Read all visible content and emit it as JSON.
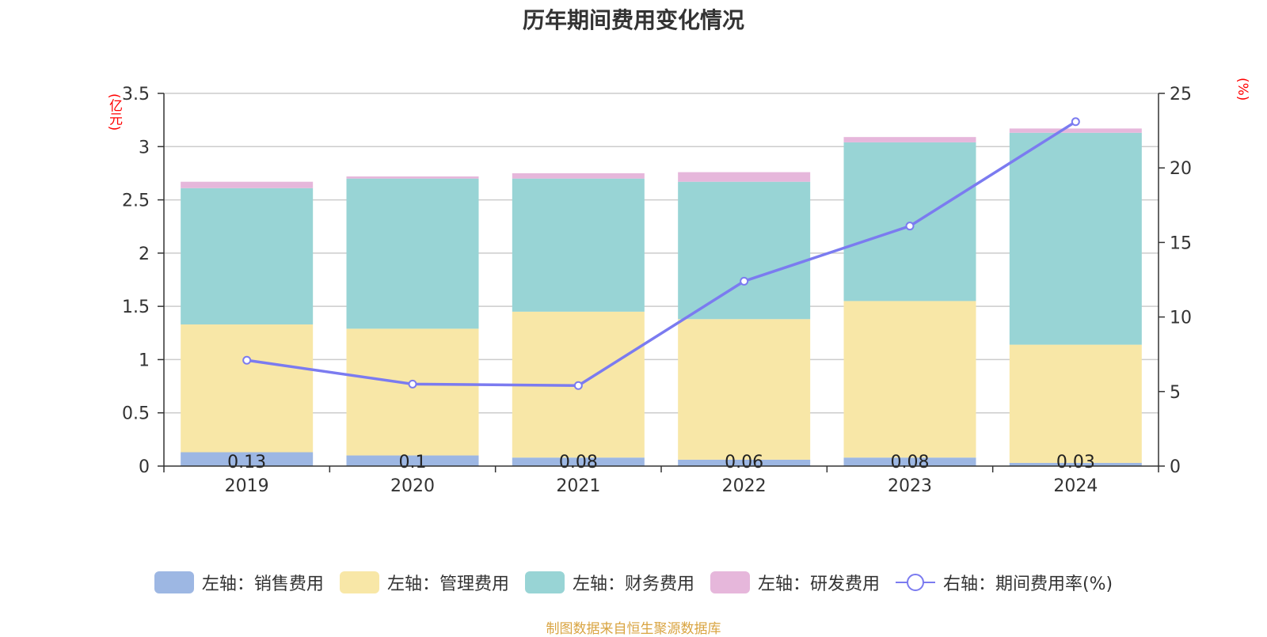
{
  "title": "历年期间费用变化情况",
  "left_unit": "(亿元)",
  "right_unit": "(%)",
  "source": "制图数据来自恒生聚源数据库",
  "chart_data": {
    "type": "bar",
    "stacked": true,
    "categories": [
      "2019",
      "2020",
      "2021",
      "2022",
      "2023",
      "2024"
    ],
    "left_axis": {
      "ylim": [
        0,
        3.5
      ],
      "ticks": [
        "0",
        "0.5",
        "1",
        "1.5",
        "2",
        "2.5",
        "3",
        "3.5"
      ]
    },
    "right_axis": {
      "ylim": [
        0,
        25
      ],
      "ticks": [
        "0",
        "5",
        "10",
        "15",
        "20",
        "25"
      ]
    },
    "grid": true,
    "legend_position": "bottom",
    "series": [
      {
        "name": "左轴：销售费用",
        "axis": "left",
        "color": "#9db7e3",
        "values": [
          0.13,
          0.1,
          0.08,
          0.06,
          0.08,
          0.03
        ],
        "labels": [
          "0.13",
          "0.1",
          "0.08",
          "0.06",
          "0.08",
          "0.03"
        ]
      },
      {
        "name": "左轴：管理费用",
        "axis": "left",
        "color": "#f8e7a7",
        "values": [
          1.2,
          1.19,
          1.37,
          1.32,
          1.47,
          1.11
        ]
      },
      {
        "name": "左轴：财务费用",
        "axis": "left",
        "color": "#98d4d5",
        "values": [
          1.28,
          1.41,
          1.25,
          1.29,
          1.49,
          1.99
        ]
      },
      {
        "name": "左轴：研发费用",
        "axis": "left",
        "color": "#e6b7db",
        "values": [
          0.06,
          0.02,
          0.05,
          0.09,
          0.05,
          0.04
        ]
      },
      {
        "name": "右轴：期间费用率(%)",
        "axis": "right",
        "type": "line",
        "color": "#7b7bf0",
        "values": [
          7.1,
          5.5,
          5.4,
          12.4,
          16.1,
          23.1
        ]
      }
    ]
  }
}
